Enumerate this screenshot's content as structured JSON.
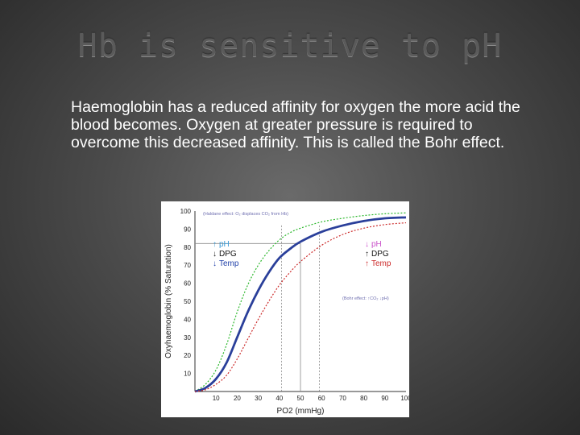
{
  "slide": {
    "title": "Hb is sensitive to pH",
    "body": "Haemoglobin has a reduced affinity for oxygen the more acid the blood becomes. Oxygen at greater pressure is required to overcome this decreased affinity. This is called the Bohr effect."
  },
  "colors": {
    "normal_curve": "#2a3f9a",
    "left_shift_curve": "#2db82d",
    "right_shift_curve": "#cc2a2a",
    "axis_text": "#222222",
    "gridline": "#8a8a8a"
  },
  "chart_data": {
    "type": "line",
    "xlabel": "PO2 (mmHg)",
    "ylabel": "Oxyhaemoglobin (% Saturation)",
    "xlim": [
      0,
      100
    ],
    "ylim": [
      0,
      100
    ],
    "xticks": [
      10,
      20,
      30,
      40,
      50,
      60,
      70,
      80,
      90,
      100
    ],
    "yticks": [
      10,
      20,
      30,
      40,
      50,
      60,
      70,
      80,
      90,
      100
    ],
    "series": [
      {
        "key": "left",
        "color": "#2db82d",
        "style": "dotted",
        "x": [
          0,
          5,
          10,
          15,
          20,
          25,
          30,
          35,
          40,
          45,
          50,
          60,
          70,
          80,
          90,
          100
        ],
        "y": [
          0,
          4,
          12,
          26,
          44,
          59,
          70,
          78,
          84,
          88,
          90.5,
          94,
          96,
          97.5,
          98.5,
          99
        ]
      },
      {
        "key": "normal",
        "color": "#2a3f9a",
        "style": "solid",
        "x": [
          0,
          5,
          10,
          15,
          20,
          25,
          30,
          35,
          40,
          45,
          50,
          60,
          70,
          80,
          90,
          100
        ],
        "y": [
          0,
          2,
          7,
          16,
          30,
          44,
          56,
          66,
          74,
          79,
          83,
          88.5,
          92,
          94.5,
          96,
          96.5
        ]
      },
      {
        "key": "right",
        "color": "#cc2a2a",
        "style": "dotted",
        "x": [
          0,
          5,
          10,
          15,
          20,
          25,
          30,
          35,
          40,
          45,
          50,
          60,
          70,
          80,
          90,
          100
        ],
        "y": [
          0,
          1,
          4,
          9,
          18,
          29,
          40,
          50,
          59,
          66,
          72,
          81,
          87,
          90.5,
          92.5,
          93.5
        ]
      }
    ],
    "reference_lines": {
      "horizontal_y": 82,
      "horizontal_x_to": 50,
      "vertical_x": [
        41,
        50,
        59
      ]
    },
    "annotations": {
      "top_note": "(Haldane effect: O₂ displaces CO₂ from Hb)",
      "left_group": [
        {
          "arrow": "↑",
          "text": "pH",
          "color": "#3a9ad6"
        },
        {
          "arrow": "↓",
          "text": "DPG",
          "color": "#111111"
        },
        {
          "arrow": "↓",
          "text": "Temp",
          "color": "#1f3fa8"
        }
      ],
      "right_group": [
        {
          "arrow": "↓",
          "text": "pH",
          "color": "#c94fc9"
        },
        {
          "arrow": "↑",
          "text": "DPG",
          "color": "#111111"
        },
        {
          "arrow": "↑",
          "text": "Temp",
          "color": "#cc2a2a"
        }
      ],
      "bohr_note": "(Bohr effect: ↑CO₂ ↓pH)"
    }
  }
}
